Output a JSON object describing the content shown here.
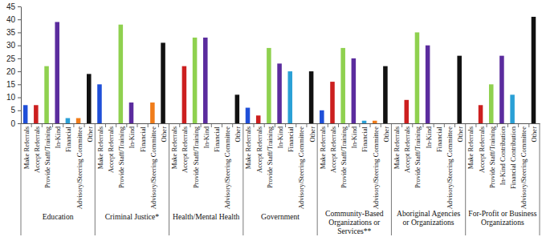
{
  "chart_data": {
    "type": "bar",
    "grid": false,
    "data_labels": false,
    "ylim": [
      0,
      45
    ],
    "yticks": [
      0,
      5,
      10,
      15,
      20,
      25,
      30,
      35,
      40,
      45
    ],
    "groups": [
      {
        "label": "Education",
        "categories": [
          "Make Referrals",
          "Accept Referrals",
          "Provide Staff/Training",
          "In-Kind",
          "Financial",
          "Advisory/Steering Committee",
          "Other"
        ],
        "values": [
          7,
          7,
          22,
          39,
          2,
          2,
          19
        ],
        "colors": [
          "#1f4fd8",
          "#cc1f1f",
          "#8fd14f",
          "#5b2c9e",
          "#2aa0d6",
          "#f07c1a",
          "#111111"
        ]
      },
      {
        "label": "Criminal Justice*",
        "categories": [
          "Make Referrals",
          "Accept Referrals",
          "Provide Staff/Training",
          "In-Kind",
          "Financial",
          "Advisory/Steering Committee",
          "Other"
        ],
        "values": [
          15,
          0,
          38,
          8,
          0,
          8,
          31
        ],
        "colors": [
          "#1f4fd8",
          "#cc1f1f",
          "#8fd14f",
          "#5b2c9e",
          "#2aa0d6",
          "#f07c1a",
          "#111111"
        ]
      },
      {
        "label": "Health/Mental Health",
        "categories": [
          "Make Referrals",
          "Accept Referrals",
          "Provide Staff/Training",
          "In-Kind",
          "Financial",
          "Advisory/Steering Committee",
          "Other"
        ],
        "values": [
          0,
          22,
          33,
          33,
          0,
          0,
          11
        ],
        "colors": [
          "#1f4fd8",
          "#cc1f1f",
          "#8fd14f",
          "#5b2c9e",
          "#2aa0d6",
          "#f07c1a",
          "#111111"
        ]
      },
      {
        "label": "Government",
        "categories": [
          "Make Referrals",
          "Accept Referrals",
          "Provide Staff/Training",
          "In-Kind",
          "Financial",
          "Advisory/Steering Committee",
          "Other"
        ],
        "values": [
          6,
          3,
          29,
          23,
          20,
          0,
          20
        ],
        "colors": [
          "#1f4fd8",
          "#cc1f1f",
          "#8fd14f",
          "#5b2c9e",
          "#2aa0d6",
          "#f07c1a",
          "#111111"
        ]
      },
      {
        "label": "Community-Based Organizations or Services**",
        "categories": [
          "Make Referrals",
          "Accept Referrals",
          "Provide Staff/Training",
          "In-Kind",
          "Financial",
          "Advisory/Steering Committee",
          "Other"
        ],
        "values": [
          5,
          16,
          29,
          25,
          1,
          1,
          22
        ],
        "colors": [
          "#1f4fd8",
          "#cc1f1f",
          "#8fd14f",
          "#5b2c9e",
          "#2aa0d6",
          "#f07c1a",
          "#111111"
        ]
      },
      {
        "label": "Aboriginal Agencies or Organizations",
        "categories": [
          "Make Referrals",
          "Accept Referrals",
          "Provide Staff/Training",
          "In-Kind",
          "Financial",
          "Advisory/Steering Committee",
          "Other"
        ],
        "values": [
          0,
          9,
          35,
          30,
          0,
          0,
          26
        ],
        "colors": [
          "#1f4fd8",
          "#cc1f1f",
          "#8fd14f",
          "#5b2c9e",
          "#2aa0d6",
          "#f07c1a",
          "#111111"
        ]
      },
      {
        "label": "For-Profit or Business Organizations",
        "categories": [
          "Make Referrals",
          "Accept Referrals",
          "Provide Staff/Training",
          "In-Kind Contribution",
          "Financial Contribution",
          "Advisory/Steering Committee",
          "Other"
        ],
        "values": [
          0,
          7,
          15,
          26,
          11,
          0,
          41
        ],
        "colors": [
          "#1f4fd8",
          "#cc1f1f",
          "#8fd14f",
          "#5b2c9e",
          "#2aa0d6",
          "#f07c1a",
          "#111111"
        ]
      }
    ]
  }
}
